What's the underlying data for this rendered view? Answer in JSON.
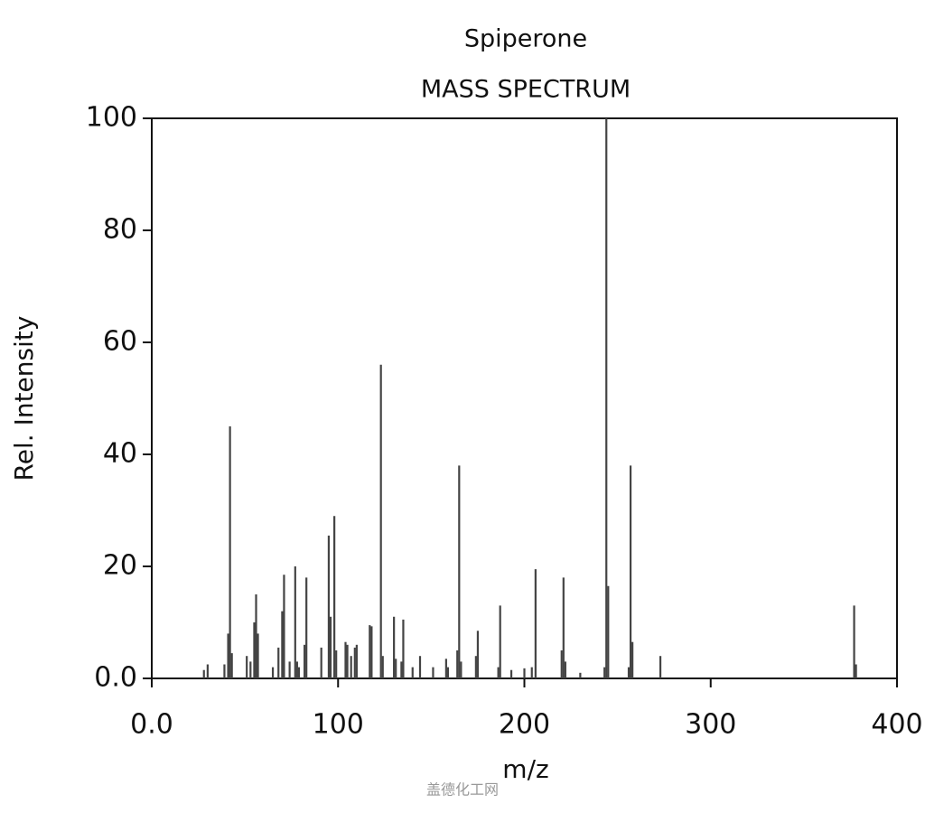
{
  "chart_data": {
    "type": "stick",
    "title": "Spiperone",
    "subtitle": "MASS SPECTRUM",
    "x_label": "m/z",
    "y_label": "Rel. Intensity",
    "watermark": "盖德化工网",
    "color": "#444444",
    "xlim": [
      0,
      400
    ],
    "ylim": [
      0,
      100
    ],
    "xticks": [
      {
        "value": 0,
        "label": "0.0"
      },
      100,
      200,
      300,
      400
    ],
    "yticks": [
      {
        "value": 0,
        "label": "0.0"
      },
      20,
      40,
      60,
      80,
      100
    ],
    "x": [
      28,
      30,
      39,
      41,
      42,
      43,
      51,
      53,
      55,
      56,
      57,
      65,
      68,
      70,
      71,
      74,
      77,
      78,
      79,
      82,
      83,
      91,
      95,
      96,
      98,
      99,
      104,
      105,
      107,
      109,
      110,
      117,
      118,
      123,
      124,
      130,
      131,
      134,
      135,
      140,
      144,
      151,
      158,
      159,
      164,
      165,
      166,
      174,
      175,
      186,
      187,
      193,
      200,
      204,
      206,
      220,
      221,
      222,
      230,
      243,
      244,
      245,
      256,
      257,
      258,
      273,
      377,
      378
    ],
    "values": [
      1.5,
      2.5,
      2.5,
      8,
      45,
      4.5,
      4,
      3,
      10,
      15,
      8,
      2,
      5.5,
      12,
      18.5,
      3,
      20,
      3,
      2,
      6,
      18,
      5.5,
      25.5,
      11,
      29,
      5,
      6.5,
      6,
      4,
      5.5,
      6,
      9.5,
      9.3,
      56,
      4,
      11,
      3.5,
      3,
      10.5,
      2,
      4,
      2,
      3.5,
      2,
      5,
      38,
      3,
      4,
      8.5,
      2,
      13,
      1.5,
      1.8,
      2,
      19.5,
      5,
      18,
      3,
      1,
      2,
      100,
      16.5,
      2,
      38,
      6.5,
      4,
      13,
      2.5
    ]
  }
}
